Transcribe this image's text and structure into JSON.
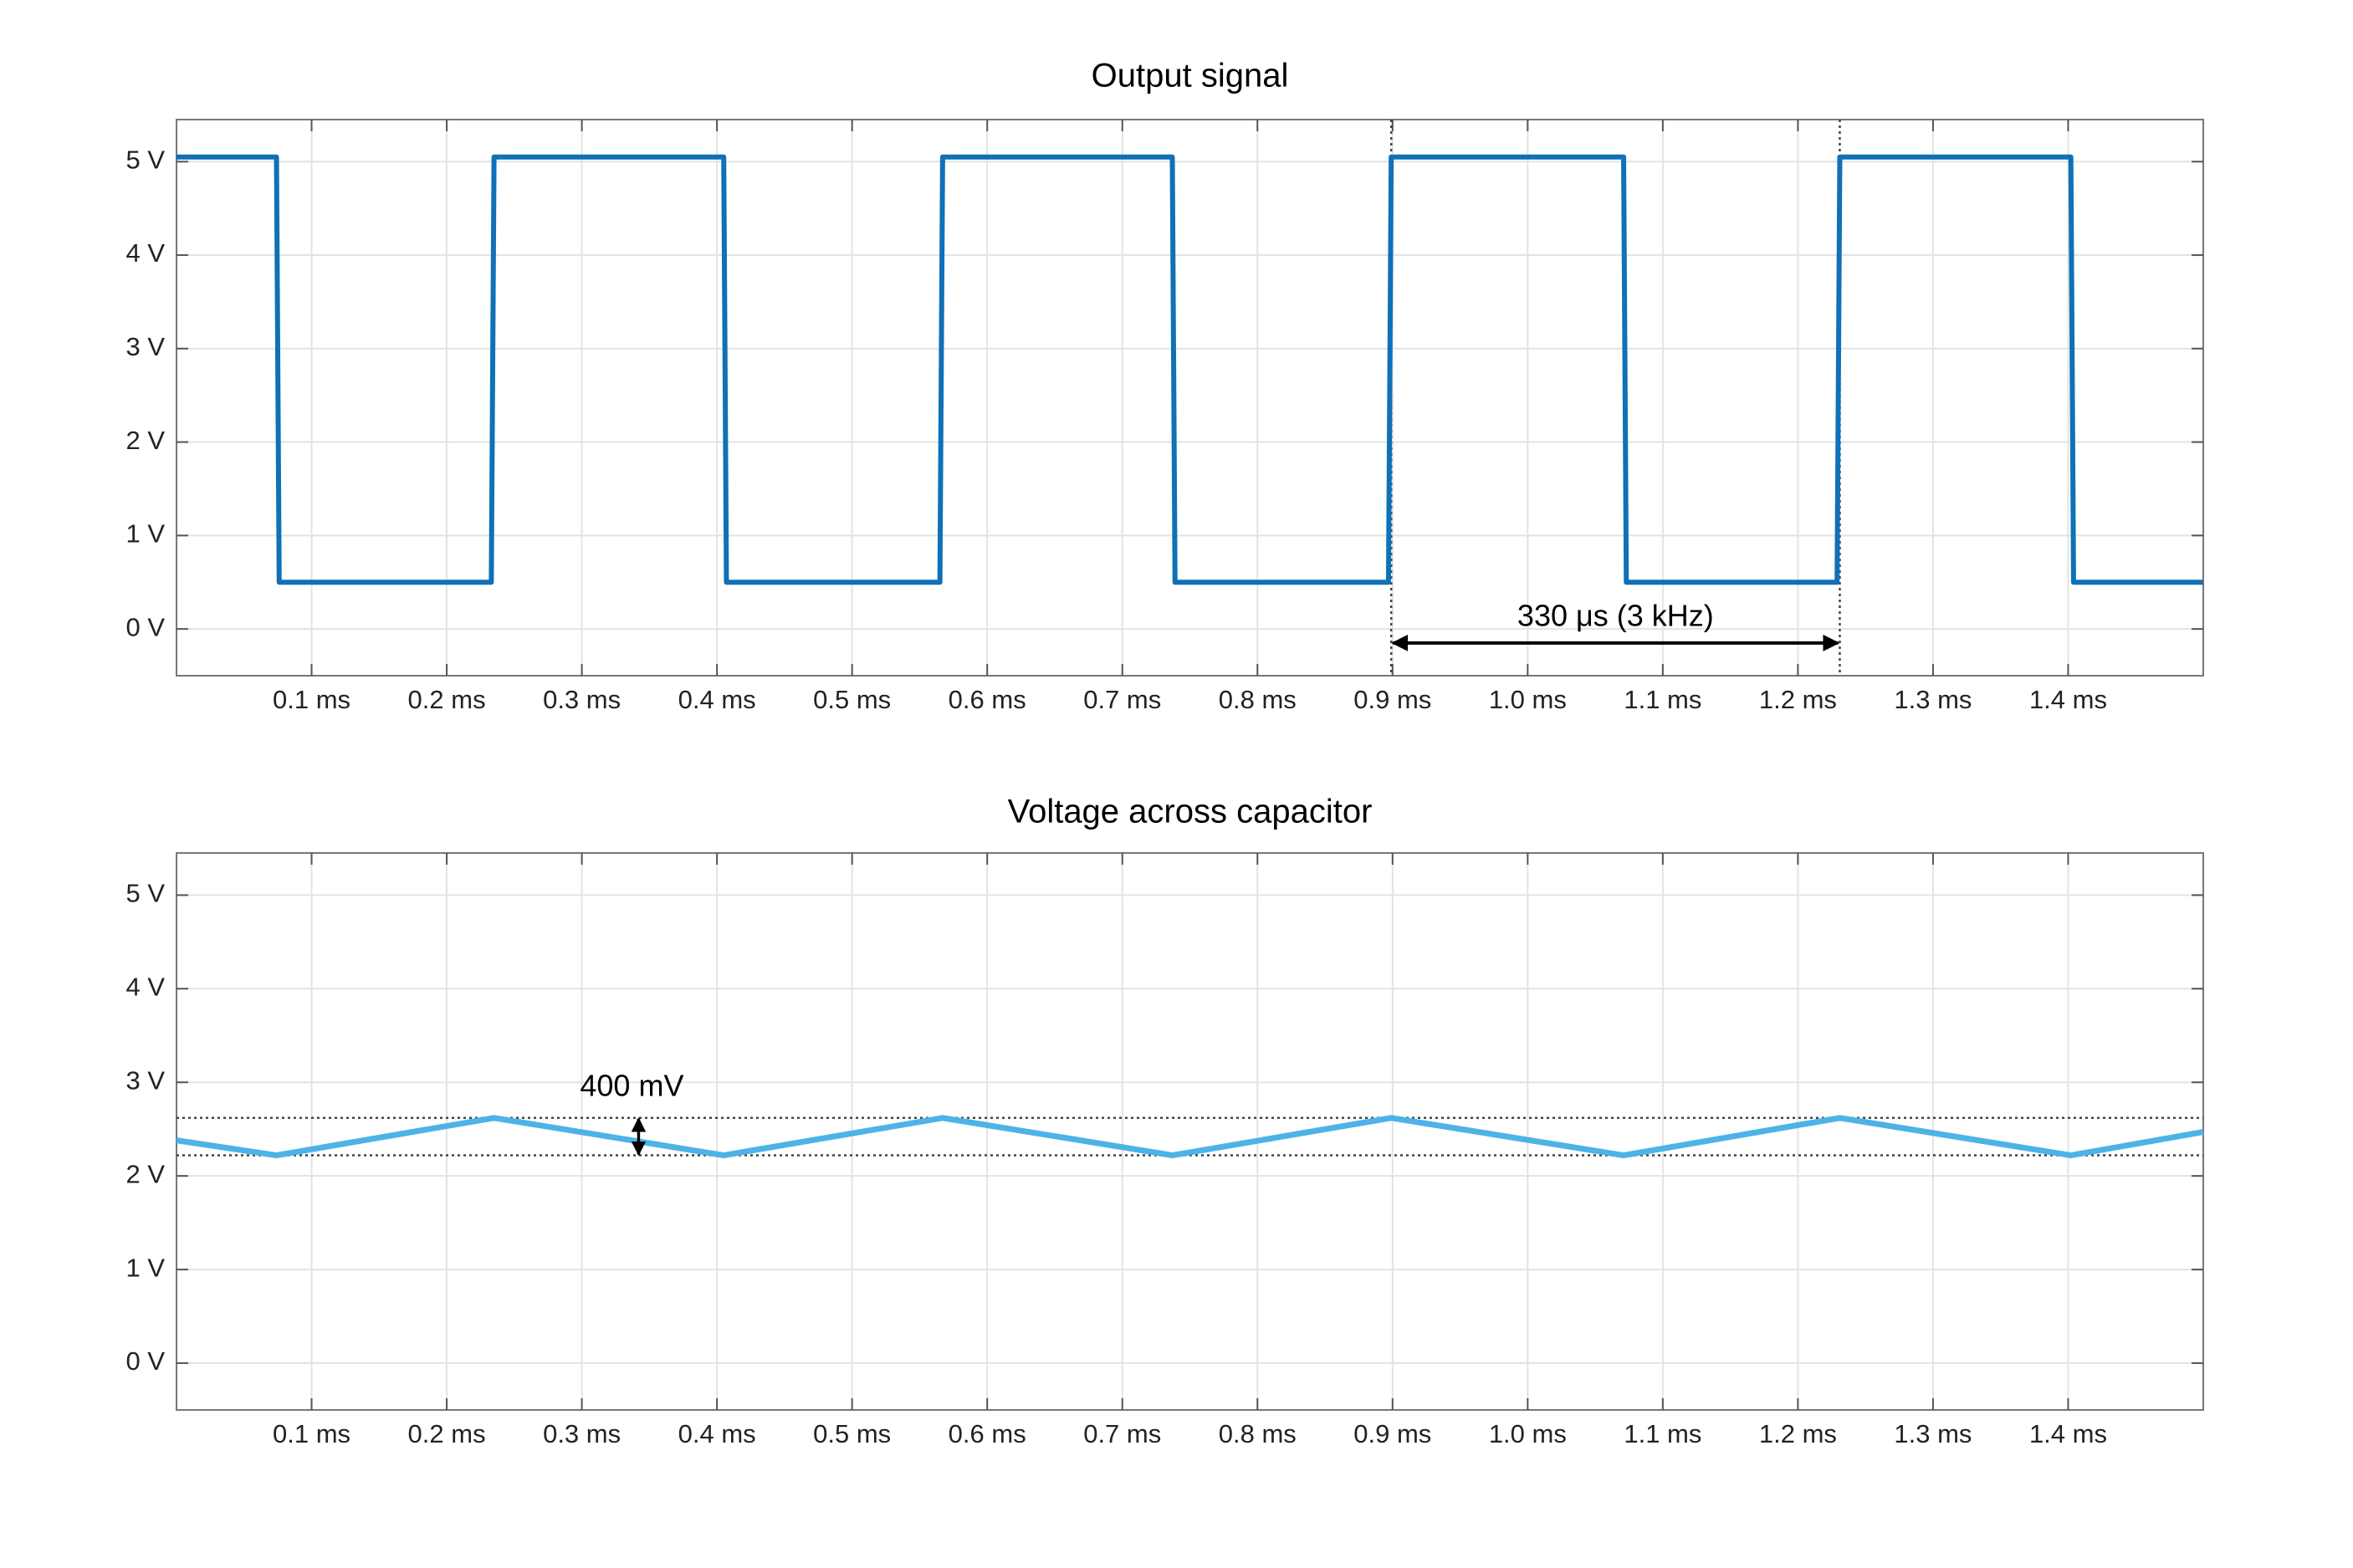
{
  "chart_data": [
    {
      "type": "line",
      "title": "Output signal",
      "color": "#1070b8",
      "x": [
        0,
        0.074,
        0.076,
        0.233,
        0.235,
        0.405,
        0.407,
        0.565,
        0.567,
        0.737,
        0.739,
        0.897,
        0.899,
        1.071,
        1.073,
        1.229,
        1.231,
        1.402,
        1.404,
        1.5
      ],
      "values": [
        5.05,
        5.05,
        0.5,
        0.5,
        5.05,
        5.05,
        0.5,
        0.5,
        5.05,
        5.05,
        0.5,
        0.5,
        5.05,
        5.05,
        0.5,
        0.5,
        5.05,
        5.05,
        0.5,
        0.5
      ],
      "xlim": [
        0,
        1.5
      ],
      "ylim": [
        -0.5,
        5.45
      ],
      "xticks": [
        {
          "value": 0.1,
          "label": "0.1 ms"
        },
        {
          "value": 0.2,
          "label": "0.2 ms"
        },
        {
          "value": 0.3,
          "label": "0.3 ms"
        },
        {
          "value": 0.4,
          "label": "0.4 ms"
        },
        {
          "value": 0.5,
          "label": "0.5 ms"
        },
        {
          "value": 0.6,
          "label": "0.6 ms"
        },
        {
          "value": 0.7,
          "label": "0.7 ms"
        },
        {
          "value": 0.8,
          "label": "0.8 ms"
        },
        {
          "value": 0.9,
          "label": "0.9 ms"
        },
        {
          "value": 1.0,
          "label": "1.0 ms"
        },
        {
          "value": 1.1,
          "label": "1.1 ms"
        },
        {
          "value": 1.2,
          "label": "1.2 ms"
        },
        {
          "value": 1.3,
          "label": "1.3 ms"
        },
        {
          "value": 1.4,
          "label": "1.4 ms"
        }
      ],
      "yticks": [
        {
          "value": 0,
          "label": "0 V"
        },
        {
          "value": 1,
          "label": "1 V"
        },
        {
          "value": 2,
          "label": "2 V"
        },
        {
          "value": 3,
          "label": "3 V"
        },
        {
          "value": 4,
          "label": "4 V"
        },
        {
          "value": 5,
          "label": "5 V"
        }
      ],
      "grid": true,
      "annotation": {
        "text": "330 μs (3 kHz)",
        "x": [
          0.899,
          1.231
        ],
        "y": -0.15
      }
    },
    {
      "type": "line",
      "title": "Voltage across capacitor",
      "color": "#4db3e6",
      "x": [
        0,
        0.074,
        0.235,
        0.405,
        0.567,
        0.737,
        0.899,
        1.071,
        1.231,
        1.402,
        1.5
      ],
      "values": [
        2.38,
        2.22,
        2.62,
        2.22,
        2.62,
        2.22,
        2.62,
        2.22,
        2.62,
        2.22,
        2.47
      ],
      "xlim": [
        0,
        1.5
      ],
      "ylim": [
        -0.5,
        5.45
      ],
      "xticks": [
        {
          "value": 0.1,
          "label": "0.1 ms"
        },
        {
          "value": 0.2,
          "label": "0.2 ms"
        },
        {
          "value": 0.3,
          "label": "0.3 ms"
        },
        {
          "value": 0.4,
          "label": "0.4 ms"
        },
        {
          "value": 0.5,
          "label": "0.5 ms"
        },
        {
          "value": 0.6,
          "label": "0.6 ms"
        },
        {
          "value": 0.7,
          "label": "0.7 ms"
        },
        {
          "value": 0.8,
          "label": "0.8 ms"
        },
        {
          "value": 0.9,
          "label": "0.9 ms"
        },
        {
          "value": 1.0,
          "label": "1.0 ms"
        },
        {
          "value": 1.1,
          "label": "1.1 ms"
        },
        {
          "value": 1.2,
          "label": "1.2 ms"
        },
        {
          "value": 1.3,
          "label": "1.3 ms"
        },
        {
          "value": 1.4,
          "label": "1.4 ms"
        }
      ],
      "yticks": [
        {
          "value": 0,
          "label": "0 V"
        },
        {
          "value": 1,
          "label": "1 V"
        },
        {
          "value": 2,
          "label": "2 V"
        },
        {
          "value": 3,
          "label": "3 V"
        },
        {
          "value": 4,
          "label": "4 V"
        },
        {
          "value": 5,
          "label": "5 V"
        }
      ],
      "grid": true,
      "annotation": {
        "text": "400 mV",
        "x": 0.342,
        "y": [
          2.22,
          2.62
        ]
      }
    }
  ]
}
